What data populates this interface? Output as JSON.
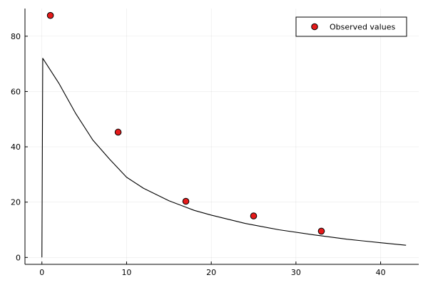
{
  "chart_data": {
    "type": "scatter",
    "title": "",
    "xlabel": "",
    "ylabel": "",
    "xlim": [
      -2,
      44.5
    ],
    "ylim": [
      -2.5,
      90
    ],
    "x_ticks": [
      0,
      10,
      20,
      30,
      40
    ],
    "y_ticks": [
      0,
      20,
      40,
      60,
      80
    ],
    "x_tick_labels": [
      "0",
      "10",
      "20",
      "30",
      "40"
    ],
    "y_tick_labels": [
      "0",
      "20",
      "40",
      "60",
      "80"
    ],
    "grid": true,
    "legend_position": "top-right",
    "series": [
      {
        "name": "Observed values",
        "type": "scatter",
        "color": "#e51a1a",
        "points": [
          {
            "x": 1,
            "y": 87.5
          },
          {
            "x": 9,
            "y": 45.3
          },
          {
            "x": 17,
            "y": 20.3
          },
          {
            "x": 25,
            "y": 15.0
          },
          {
            "x": 33,
            "y": 9.5
          }
        ]
      },
      {
        "type": "line",
        "color": "#000000",
        "points": [
          {
            "x": 0,
            "y": 0
          },
          {
            "x": 0.1,
            "y": 72.0
          },
          {
            "x": 2,
            "y": 63.0
          },
          {
            "x": 4,
            "y": 52.0
          },
          {
            "x": 6,
            "y": 42.5
          },
          {
            "x": 8,
            "y": 35.5
          },
          {
            "x": 10,
            "y": 29.0
          },
          {
            "x": 12,
            "y": 25.0
          },
          {
            "x": 15,
            "y": 20.5
          },
          {
            "x": 18,
            "y": 17.0
          },
          {
            "x": 20,
            "y": 15.3
          },
          {
            "x": 24,
            "y": 12.3
          },
          {
            "x": 28,
            "y": 10.0
          },
          {
            "x": 32,
            "y": 8.2
          },
          {
            "x": 36,
            "y": 6.6
          },
          {
            "x": 40,
            "y": 5.3
          },
          {
            "x": 43,
            "y": 4.4
          }
        ]
      }
    ]
  }
}
